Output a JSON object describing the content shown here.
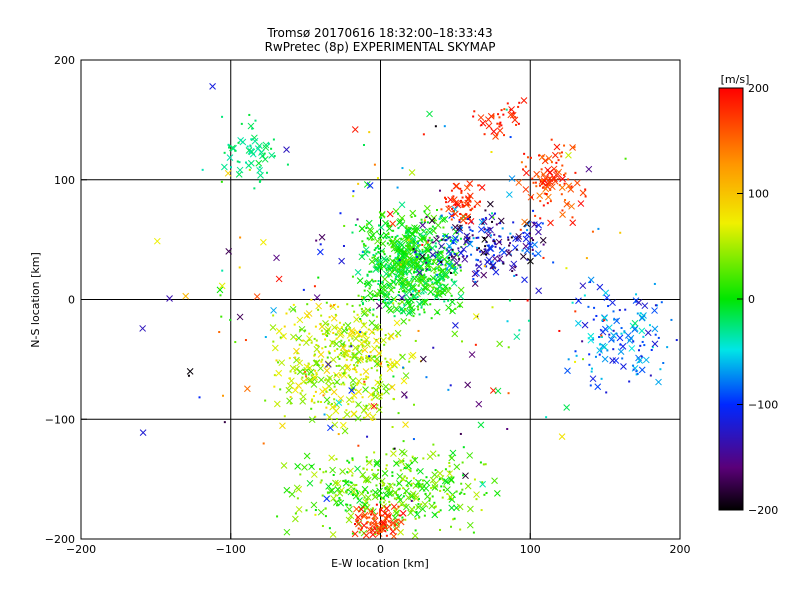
{
  "chart_data": {
    "type": "scatter",
    "title": "Tromsø 20170616 18:32:00–18:33:43",
    "subtitle": "RwPretec (8p) EXPERIMENTAL SKYMAP",
    "xlabel": "E-W location [km]",
    "ylabel": "N-S location [km]",
    "xlim": [
      -200,
      200
    ],
    "ylim": [
      -200,
      200
    ],
    "x_ticks": [
      -200,
      -100,
      0,
      100,
      200
    ],
    "y_ticks": [
      -200,
      -100,
      0,
      100,
      200
    ],
    "x_tick_labels": [
      "−200",
      "−100",
      "0",
      "100",
      "200"
    ],
    "y_tick_labels": [
      "−200",
      "−100",
      "0",
      "100",
      "200"
    ],
    "grid": true,
    "marker_types": [
      "cross",
      "dot"
    ],
    "colorbar": {
      "label": "[m/s]",
      "range": [
        -200,
        200
      ],
      "ticks": [
        200,
        100,
        0,
        -100,
        -200
      ],
      "tick_labels": [
        "200",
        "100",
        "0",
        "−100",
        "−200"
      ],
      "colormap": "rainbow black-purple-blue-cyan-green-yellow-orange-red"
    },
    "clusters": [
      {
        "x": [
          -20,
          60
        ],
        "y": [
          -20,
          80
        ],
        "v": [
          -30,
          30
        ],
        "n": 700
      },
      {
        "x": [
          -80,
          30
        ],
        "y": [
          -110,
          10
        ],
        "v": [
          20,
          90
        ],
        "n": 450
      },
      {
        "x": [
          -70,
          80
        ],
        "y": [
          -200,
          -120
        ],
        "v": [
          -10,
          60
        ],
        "n": 380
      },
      {
        "x": [
          -20,
          20
        ],
        "y": [
          -200,
          -170
        ],
        "v": [
          150,
          200
        ],
        "n": 90
      },
      {
        "x": [
          20,
          120
        ],
        "y": [
          10,
          80
        ],
        "v": [
          -200,
          -60
        ],
        "n": 220
      },
      {
        "x": [
          40,
          70
        ],
        "y": [
          60,
          100
        ],
        "v": [
          160,
          200
        ],
        "n": 60
      },
      {
        "x": [
          90,
          140
        ],
        "y": [
          60,
          140
        ],
        "v": [
          140,
          200
        ],
        "n": 110
      },
      {
        "x": [
          60,
          100
        ],
        "y": [
          130,
          170
        ],
        "v": [
          160,
          200
        ],
        "n": 40
      },
      {
        "x": [
          120,
          200
        ],
        "y": [
          -80,
          20
        ],
        "v": [
          -130,
          -40
        ],
        "n": 130
      },
      {
        "x": [
          -110,
          -60
        ],
        "y": [
          90,
          160
        ],
        "v": [
          -40,
          -10
        ],
        "n": 60
      },
      {
        "x": [
          -200,
          200
        ],
        "y": [
          -200,
          200
        ],
        "v": [
          -200,
          200
        ],
        "n": 200
      }
    ]
  }
}
